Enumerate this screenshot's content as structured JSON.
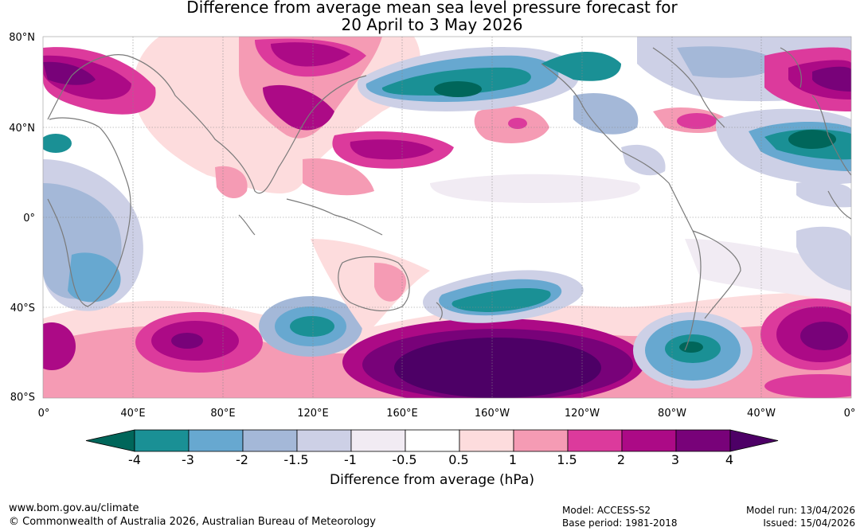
{
  "title": {
    "line1": "Difference from average mean sea level pressure forecast for",
    "line2": "20 April to 3 May 2026"
  },
  "map": {
    "lat_labels": [
      "80°N",
      "40°N",
      "0°",
      "40°S",
      "80°S"
    ],
    "lon_labels": [
      "0°",
      "40°E",
      "80°E",
      "120°E",
      "160°E",
      "160°W",
      "120°W",
      "80°W",
      "40°W",
      "0°"
    ]
  },
  "colorbar": {
    "ticks": [
      "-4",
      "-3",
      "-2",
      "-1.5",
      "-1",
      "-0.5",
      "0.5",
      "1",
      "1.5",
      "2",
      "3",
      "4"
    ],
    "colors": [
      "#00665a",
      "#1a9095",
      "#67a8d0",
      "#a4b8d8",
      "#cdd0e6",
      "#f1ebf3",
      "#ffffff",
      "#fddcdd",
      "#f59bb4",
      "#dc3a9c",
      "#ac0a86",
      "#780279",
      "#4d0066"
    ],
    "label": "Difference from average (hPa)"
  },
  "footer": {
    "website": "www.bom.gov.au/climate",
    "copyright": "© Commonwealth of Australia 2026, Australian Bureau of Meteorology",
    "model": "Model: ACCESS-S2",
    "base_period": "Base period: 1981-2018",
    "model_run": "Model run: 13/04/2026",
    "issued": "Issued: 15/04/2026"
  }
}
